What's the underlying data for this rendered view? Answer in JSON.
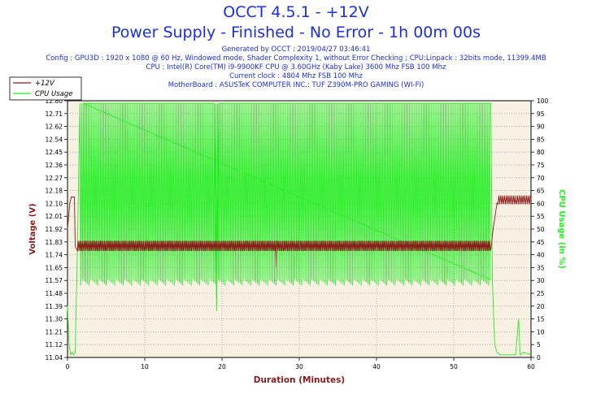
{
  "header": {
    "title": "OCCT 4.5.1 - +12V",
    "subtitle": "Power Supply - Finished - No Error - 1h 00m 00s",
    "info": [
      "Generated by OCCT : 2019/04/27 03:46:41",
      "Config : GPU3D : 1920 x 1080 @ 60 Hz, Windowed mode, Shader Complexity 1, without Error Checking ; CPU:Linpack : 32bits mode, 11399.4MB",
      "CPU : Intel(R) Core(TM) i9-9900KF CPU @ 3.60GHz (Kaby Lake) 3600 Mhz FSB 100 Mhz",
      "Current clock : 4804 Mhz FSB 100 Mhz",
      "MotherBoard : ASUSTeK COMPUTER INC.: TUF Z390M-PRO GAMING (WI-FI)"
    ]
  },
  "colors": {
    "voltage": "#8b1a1a",
    "cpu": "#22ee22",
    "background": "#f8f1e3",
    "grid": "#a0a0a0",
    "text": "#1b2fe0"
  },
  "chart_data": {
    "type": "line",
    "xlabel": "Duration (Minutes)",
    "ylabel": "Voltage (V)",
    "y2label": "CPU Usage (in %)",
    "xlim": [
      0,
      60
    ],
    "ylim": [
      11.04,
      12.8
    ],
    "y2lim": [
      0,
      100
    ],
    "x_ticks": [
      0,
      10,
      20,
      30,
      40,
      50,
      60
    ],
    "y_ticks": [
      "11.04",
      "11.12",
      "11.21",
      "11.30",
      "11.39",
      "11.48",
      "11.57",
      "11.65",
      "11.74",
      "11.83",
      "11.92",
      "12.01",
      "12.10",
      "12.18",
      "12.27",
      "12.36",
      "12.45",
      "12.54",
      "12.62",
      "12.71",
      "12.80"
    ],
    "y2_ticks": [
      0,
      5,
      10,
      15,
      20,
      25,
      30,
      35,
      40,
      45,
      50,
      55,
      60,
      65,
      70,
      75,
      80,
      85,
      90,
      95,
      100
    ],
    "grid": true,
    "legend": "top-left",
    "series": [
      {
        "name": "+12V",
        "axis": "left",
        "color": "#8b1a1a",
        "x": [
          0,
          0.3,
          0.5,
          0.9,
          1.0,
          1.2,
          2,
          5,
          10,
          15,
          20,
          25,
          27,
          28,
          30,
          35,
          40,
          45,
          50,
          54.8,
          55.1,
          55.6,
          56,
          57,
          58,
          59,
          60
        ],
        "y": [
          11.92,
          12.1,
          12.14,
          12.14,
          11.8,
          11.78,
          11.79,
          11.78,
          11.79,
          11.78,
          11.79,
          11.78,
          11.66,
          11.78,
          11.79,
          11.78,
          11.79,
          11.78,
          11.79,
          11.78,
          11.92,
          12.1,
          12.12,
          12.14,
          12.12,
          12.14,
          12.12
        ]
      },
      {
        "name": "CPU Usage",
        "axis": "right",
        "color": "#22ee22",
        "x": [
          0,
          0.2,
          0.4,
          0.6,
          0.8,
          1.0,
          1.3,
          1.6,
          2,
          5,
          10,
          15,
          19,
          19.3,
          19.6,
          20,
          25,
          30,
          35,
          40,
          45,
          50,
          54.8,
          55.0,
          55.3,
          55.6,
          56,
          57,
          58,
          58.4,
          58.6,
          59,
          60
        ],
        "y": [
          20,
          5,
          1,
          2,
          1,
          2,
          45,
          99,
          99,
          99,
          99,
          99,
          99,
          18,
          99,
          99,
          99,
          99,
          99,
          99,
          99,
          99,
          99,
          30,
          5,
          2,
          1,
          1,
          1,
          15,
          1,
          2,
          1
        ],
        "oscillating_range": [
          [
            1.6,
            54.8,
            28,
            99
          ]
        ]
      }
    ]
  }
}
